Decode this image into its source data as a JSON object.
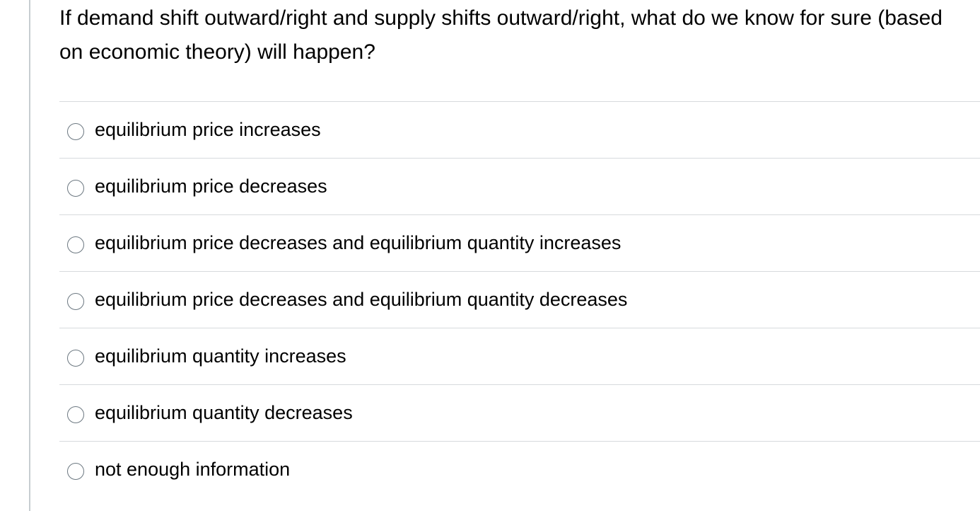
{
  "question": {
    "text": "If demand shift outward/right and supply shifts outward/right, what do we know for sure (based on economic theory) will happen?"
  },
  "answers": [
    {
      "label": "equilibrium price increases",
      "selected": false
    },
    {
      "label": "equilibrium price decreases",
      "selected": false
    },
    {
      "label": "equilibrium price decreases and equilibrium quantity increases",
      "selected": false
    },
    {
      "label": "equilibrium price decreases and equilibrium quantity decreases",
      "selected": false
    },
    {
      "label": "equilibrium quantity increases",
      "selected": false
    },
    {
      "label": "equilibrium quantity decreases",
      "selected": false
    },
    {
      "label": "not enough information",
      "selected": false
    }
  ]
}
